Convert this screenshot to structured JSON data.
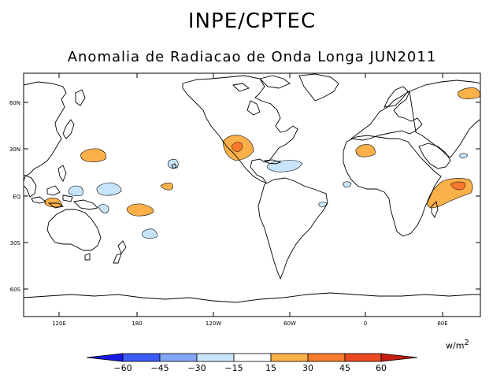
{
  "header": {
    "title": "INPE/CPTEC",
    "subtitle": "Anomalia de Radiacao de Onda Longa JUN2011"
  },
  "map": {
    "lat_ticks": [
      "60N",
      "30N",
      "EQ",
      "30S",
      "60S"
    ],
    "lon_ticks": [
      "120E",
      "180",
      "120W",
      "60W",
      "0",
      "60E"
    ]
  },
  "units": {
    "base": "w/m",
    "exponent": "2"
  },
  "colorbar": {
    "labels": [
      "−60",
      "−45",
      "−30",
      "−15",
      "15",
      "30",
      "45",
      "60"
    ],
    "colors": [
      "#1a1ae6",
      "#3c5cf5",
      "#82a6f5",
      "#c8e4fa",
      "#ffffff",
      "#fcb04a",
      "#f77b2d",
      "#ea4a22",
      "#c41d10"
    ]
  },
  "colors": {
    "positive_weak": "#fcb04a",
    "positive_mid": "#f77b2d",
    "negative_weak": "#c8e4fa",
    "land_outline": "#000000"
  }
}
